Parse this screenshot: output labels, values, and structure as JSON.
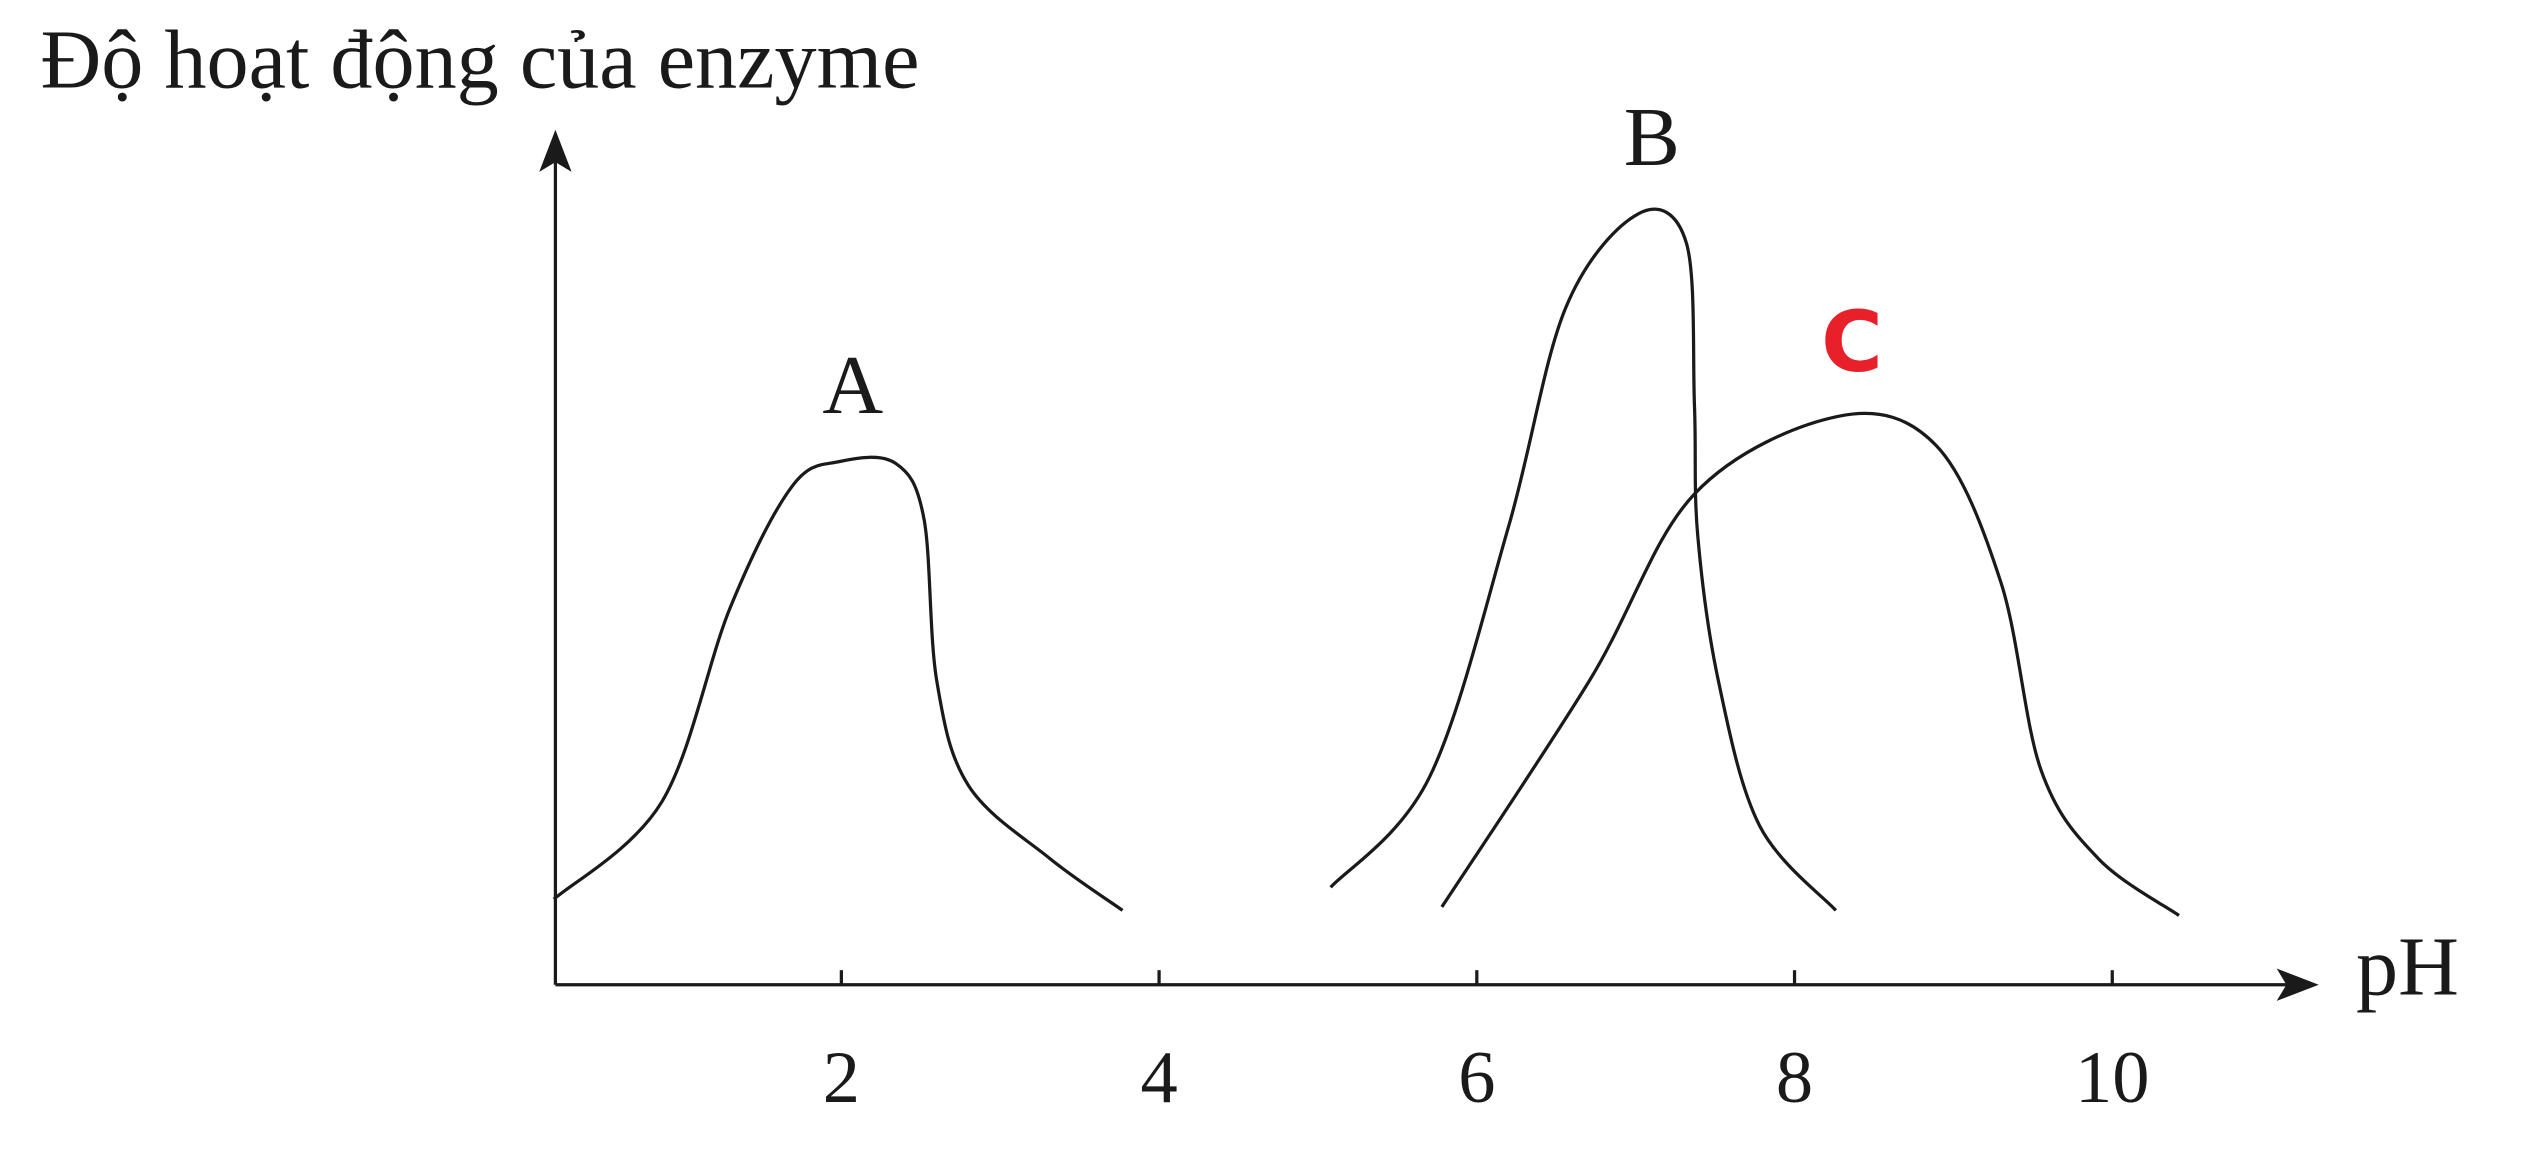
{
  "chart_data": {
    "type": "line",
    "y_label": "Độ hoạt động của enzyme",
    "x_label": "pH",
    "xlim": [
      0.2,
      11.3
    ],
    "ylim": [
      0,
      10
    ],
    "xticks": [
      2,
      4,
      6,
      8,
      10
    ],
    "series": [
      {
        "name": "A",
        "color": "#1a1a1a",
        "label_color": "#1a1a1a",
        "x": [
          0.19,
          0.87,
          1.3,
          1.69,
          1.99,
          2.34,
          2.52,
          2.6,
          2.8,
          3.31,
          3.77
        ],
        "values": [
          1.0,
          2.14,
          4.41,
          5.83,
          6.12,
          6.1,
          5.45,
          3.56,
          2.33,
          1.48,
          0.87
        ]
      },
      {
        "name": "B",
        "color": "#1a1a1a",
        "label_color": "#1a1a1a",
        "x": [
          5.08,
          5.7,
          6.2,
          6.56,
          7.02,
          7.32,
          7.37,
          7.39,
          7.52,
          7.78,
          8.26
        ],
        "values": [
          1.14,
          2.42,
          5.36,
          7.92,
          9.02,
          8.67,
          6.78,
          5.27,
          3.56,
          1.86,
          0.87
        ]
      },
      {
        "name": "C",
        "color": "#1a1a1a",
        "label_color": "#e8202a",
        "x": [
          5.78,
          6.71,
          7.37,
          8.28,
          8.89,
          9.3,
          9.55,
          9.91,
          10.42
        ],
        "values": [
          0.91,
          3.56,
          5.74,
          6.65,
          6.31,
          4.7,
          2.52,
          1.48,
          0.81
        ]
      }
    ]
  }
}
